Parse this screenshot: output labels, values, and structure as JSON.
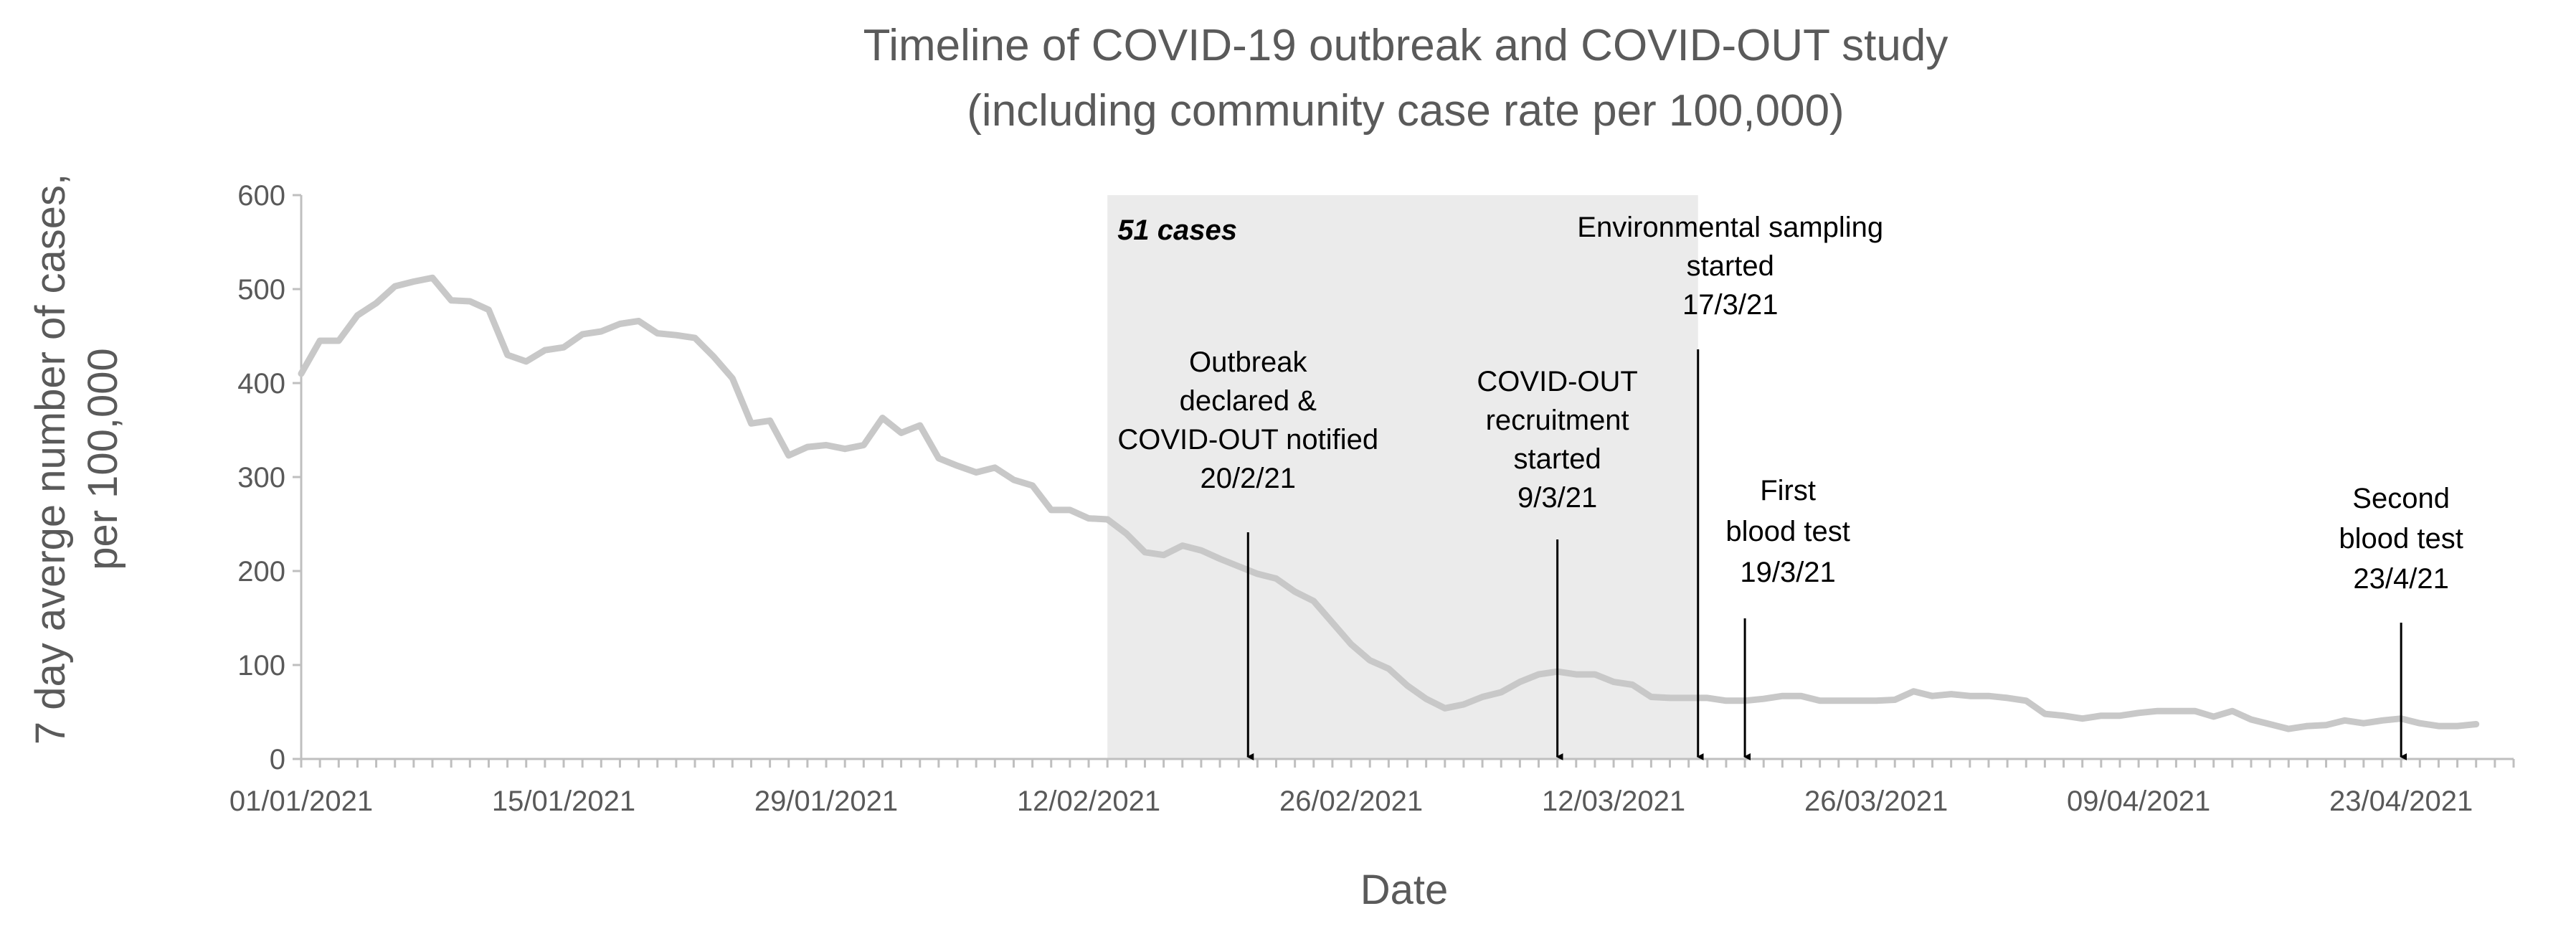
{
  "chart_data": {
    "type": "line",
    "title_lines": [
      "Timeline of COVID-19 outbreak and COVID-OUT study",
      "(including community case rate per 100,000)"
    ],
    "xlabel": "Date",
    "ylabel_lines": [
      "7 day averge number of cases,",
      "per 100,000"
    ],
    "ylim": [
      0,
      600
    ],
    "yticks": [
      0,
      100,
      200,
      300,
      400,
      500,
      600
    ],
    "x_range_days": [
      0,
      118
    ],
    "x_ticks": [
      {
        "day": 0,
        "label": "01/01/2021"
      },
      {
        "day": 14,
        "label": "15/01/2021"
      },
      {
        "day": 28,
        "label": "29/01/2021"
      },
      {
        "day": 42,
        "label": "12/02/2021"
      },
      {
        "day": 56,
        "label": "26/02/2021"
      },
      {
        "day": 70,
        "label": "12/03/2021"
      },
      {
        "day": 84,
        "label": "26/03/2021"
      },
      {
        "day": 98,
        "label": "09/04/2021"
      },
      {
        "day": 112,
        "label": "23/04/2021"
      }
    ],
    "series": [
      {
        "name": "Community case rate per 100,000",
        "color": "#c8c8c8",
        "values": [
          410,
          445,
          445,
          472,
          485,
          503,
          508,
          512,
          488,
          487,
          478,
          430,
          423,
          435,
          438,
          452,
          455,
          463,
          466,
          453,
          451,
          448,
          428,
          405,
          357,
          360,
          323,
          332,
          334,
          330,
          334,
          363,
          347,
          355,
          320,
          312,
          305,
          310,
          297,
          291,
          265,
          265,
          256,
          255,
          240,
          220,
          217,
          227,
          222,
          213,
          205,
          197,
          192,
          178,
          168,
          145,
          122,
          105,
          96,
          78,
          64,
          54,
          58,
          66,
          71,
          82,
          90,
          93,
          90,
          90,
          82,
          79,
          66,
          65,
          65,
          65,
          62,
          62,
          64,
          67,
          67,
          62,
          62,
          62,
          62,
          63,
          72,
          67,
          69,
          67,
          67,
          65,
          62,
          48,
          46,
          43,
          46,
          46,
          49,
          51,
          51,
          51,
          45,
          51,
          42,
          37,
          32,
          35,
          36,
          41,
          38,
          41,
          43,
          38,
          35,
          35,
          37
        ]
      }
    ],
    "shaded_region": {
      "start_day": 43,
      "end_day": 74.5,
      "color": "#ebebeb",
      "label": "51 cases"
    },
    "annotations": [
      {
        "day": 50.5,
        "lines": [
          "Outbreak",
          "declared &",
          "COVID-OUT notified",
          "20/2/21"
        ]
      },
      {
        "day": 67,
        "lines": [
          "COVID-OUT",
          "recruitment",
          "started",
          "9/3/21"
        ]
      },
      {
        "day": 74.5,
        "lines": [
          "Environmental sampling",
          "started",
          "17/3/21"
        ]
      },
      {
        "day": 77,
        "lines": [
          "First",
          "blood test",
          "19/3/21"
        ]
      },
      {
        "day": 112,
        "lines": [
          "Second",
          "blood test",
          "23/4/21"
        ]
      }
    ]
  }
}
